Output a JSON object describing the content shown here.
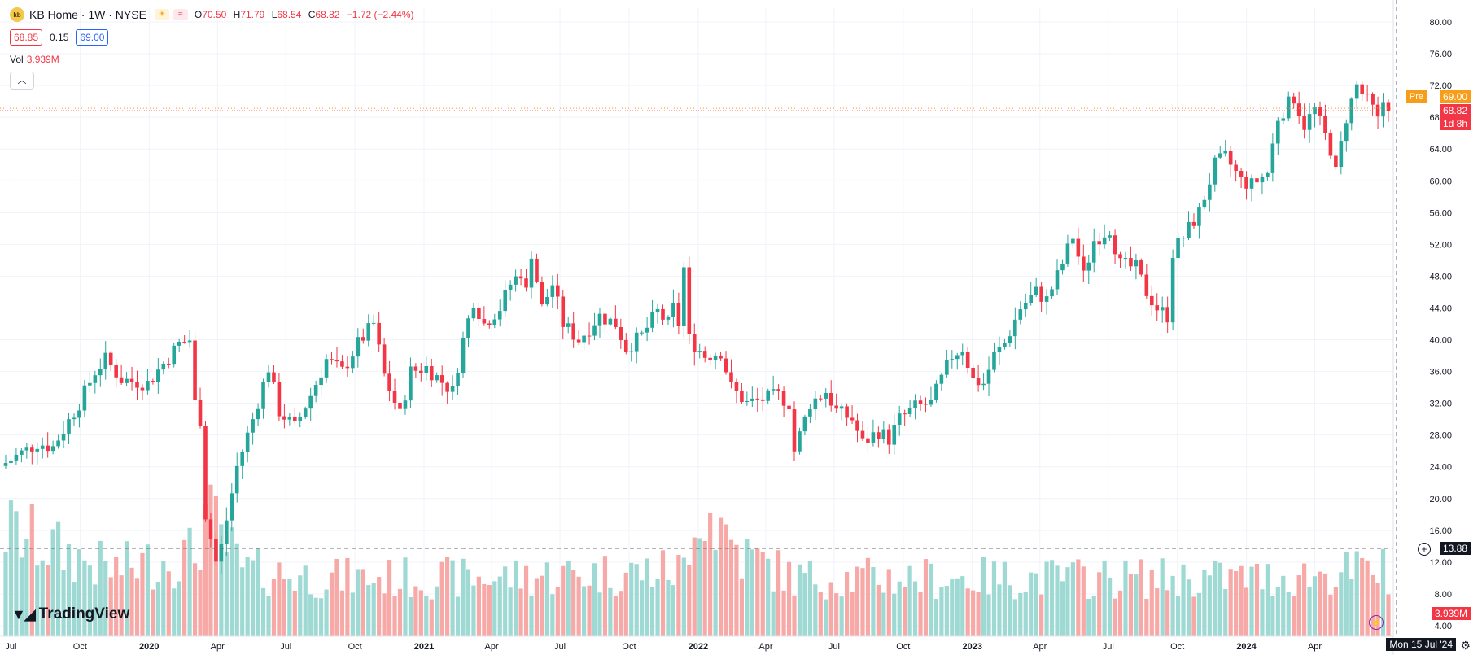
{
  "header": {
    "logo": "kb",
    "symbol": "KB Home · 1W · NYSE",
    "open_label": "O",
    "open": "70.50",
    "high_label": "H",
    "high": "71.79",
    "low_label": "L",
    "low": "68.54",
    "close_label": "C",
    "close": "68.82",
    "change": "−1.72 (−2.44%)",
    "bid": "68.85",
    "spread": "0.15",
    "ask": "69.00",
    "vol_label": "Vol",
    "vol_value": "3.939M",
    "collapse_icon": "chevron-up-icon"
  },
  "branding": {
    "name": "TradingView"
  },
  "price_scale": {
    "pre_tag": "Pre",
    "pre_price": "69.00",
    "last_price": "68.82",
    "countdown": "1d 8h",
    "crosshair_value": "13.88",
    "volume_tag": "3.939M",
    "date_tag": "Mon 15 Jul '24"
  },
  "colors": {
    "up": "#26a69a",
    "down": "#f23645",
    "up_vol": "#9fd9d3",
    "down_vol": "#f7a9a7",
    "pre": "#f89d1a",
    "grid": "#f0f3fa"
  },
  "chart_data": {
    "type": "candlestick",
    "y_ticks": [
      "80.00",
      "76.00",
      "72.00",
      "68.00",
      "64.00",
      "60.00",
      "56.00",
      "52.00",
      "48.00",
      "44.00",
      "40.00",
      "36.00",
      "32.00",
      "28.00",
      "24.00",
      "20.00",
      "16.00",
      "12.00",
      "8.00",
      "4.00"
    ],
    "ylim": [
      4,
      80
    ],
    "x_ticks": [
      {
        "label": "Jul",
        "date": "2019-07-01"
      },
      {
        "label": "Oct",
        "date": "2019-10-01"
      },
      {
        "label": "2020",
        "date": "2020-01-01"
      },
      {
        "label": "Apr",
        "date": "2020-04-01"
      },
      {
        "label": "Jul",
        "date": "2020-07-01"
      },
      {
        "label": "Oct",
        "date": "2020-10-01"
      },
      {
        "label": "2021",
        "date": "2021-01-01"
      },
      {
        "label": "Apr",
        "date": "2021-04-01"
      },
      {
        "label": "Jul",
        "date": "2021-07-01"
      },
      {
        "label": "Oct",
        "date": "2021-10-01"
      },
      {
        "label": "2022",
        "date": "2022-01-01"
      },
      {
        "label": "Apr",
        "date": "2022-04-01"
      },
      {
        "label": "Jul",
        "date": "2022-07-01"
      },
      {
        "label": "Oct",
        "date": "2022-10-01"
      },
      {
        "label": "2023",
        "date": "2023-01-01"
      },
      {
        "label": "Apr",
        "date": "2023-04-01"
      },
      {
        "label": "Jul",
        "date": "2023-07-01"
      },
      {
        "label": "Oct",
        "date": "2023-10-01"
      },
      {
        "label": "2024",
        "date": "2024-01-01"
      },
      {
        "label": "Apr",
        "date": "2024-04-01"
      }
    ],
    "start_date": "2019-06-24",
    "close_path": [
      [
        0,
        24.5
      ],
      [
        6,
        27.0
      ],
      [
        9,
        26.5
      ],
      [
        14,
        32.0
      ],
      [
        17,
        36.0
      ],
      [
        19,
        37.5
      ],
      [
        22,
        35.0
      ],
      [
        27,
        34.5
      ],
      [
        30,
        37.0
      ],
      [
        33,
        39.5
      ],
      [
        35,
        40.0
      ],
      [
        36,
        32.0
      ],
      [
        37,
        30.0
      ],
      [
        38,
        18.0
      ],
      [
        40,
        12.0
      ],
      [
        41,
        14.0
      ],
      [
        44,
        24.0
      ],
      [
        47,
        30.0
      ],
      [
        50,
        36.5
      ],
      [
        52,
        31.0
      ],
      [
        55,
        29.0
      ],
      [
        58,
        33.0
      ],
      [
        61,
        37.5
      ],
      [
        64,
        36.0
      ],
      [
        67,
        39.5
      ],
      [
        70,
        42.0
      ],
      [
        72,
        35.5
      ],
      [
        75,
        30.5
      ],
      [
        77,
        36.0
      ],
      [
        80,
        36.5
      ],
      [
        85,
        33.5
      ],
      [
        87,
        40.0
      ],
      [
        89,
        45.0
      ],
      [
        91,
        42.0
      ],
      [
        94,
        44.0
      ],
      [
        96,
        47.0
      ],
      [
        98,
        48.5
      ],
      [
        99,
        46.0
      ],
      [
        100,
        51.0
      ],
      [
        102,
        44.0
      ],
      [
        104,
        47.0
      ],
      [
        106,
        42.0
      ],
      [
        109,
        40.0
      ],
      [
        113,
        43.0
      ],
      [
        116,
        42.0
      ],
      [
        118,
        39.0
      ],
      [
        121,
        40.5
      ],
      [
        124,
        43.5
      ],
      [
        126,
        42.0
      ],
      [
        127,
        44.0
      ],
      [
        128,
        42.0
      ],
      [
        129,
        49.0
      ],
      [
        130,
        40.0
      ],
      [
        133,
        38.0
      ],
      [
        136,
        38.5
      ],
      [
        138,
        34.0
      ],
      [
        141,
        32.0
      ],
      [
        144,
        32.5
      ],
      [
        147,
        33.0
      ],
      [
        149,
        32.0
      ],
      [
        150,
        26.0
      ],
      [
        153,
        32.0
      ],
      [
        156,
        33.5
      ],
      [
        158,
        31.0
      ],
      [
        161,
        30.0
      ],
      [
        163,
        27.0
      ],
      [
        166,
        28.5
      ],
      [
        168,
        27.5
      ],
      [
        170,
        30.0
      ],
      [
        173,
        31.5
      ],
      [
        176,
        32.0
      ],
      [
        180,
        38.0
      ],
      [
        182,
        39.0
      ],
      [
        184,
        35.0
      ],
      [
        186,
        34.5
      ],
      [
        188,
        38.0
      ],
      [
        190,
        39.5
      ],
      [
        193,
        44.0
      ],
      [
        196,
        46.0
      ],
      [
        198,
        45.0
      ],
      [
        200,
        48.0
      ],
      [
        203,
        53.0
      ],
      [
        205,
        48.0
      ],
      [
        207,
        52.5
      ],
      [
        210,
        54.0
      ],
      [
        212,
        49.5
      ],
      [
        215,
        49.0
      ],
      [
        217,
        46.0
      ],
      [
        219,
        44.0
      ],
      [
        221,
        43.0
      ],
      [
        222,
        51.0
      ],
      [
        224,
        53.0
      ],
      [
        227,
        56.0
      ],
      [
        230,
        62.0
      ],
      [
        232,
        63.0
      ],
      [
        235,
        60.0
      ],
      [
        237,
        59.5
      ],
      [
        240,
        61.0
      ],
      [
        242,
        68.0
      ],
      [
        245,
        70.5
      ],
      [
        247,
        67.0
      ],
      [
        249,
        69.0
      ],
      [
        252,
        64.0
      ],
      [
        253,
        61.0
      ],
      [
        255,
        68.0
      ],
      [
        257,
        72.0
      ],
      [
        258,
        71.0
      ],
      [
        260,
        69.0
      ],
      [
        261,
        67.5
      ],
      [
        262,
        70.0
      ],
      [
        263,
        68.82
      ]
    ],
    "volume_path": [
      [
        0,
        12
      ],
      [
        20,
        7
      ],
      [
        36,
        9
      ],
      [
        38,
        14
      ],
      [
        41,
        11
      ],
      [
        45,
        7
      ],
      [
        60,
        6
      ],
      [
        90,
        6
      ],
      [
        130,
        7
      ],
      [
        131,
        17
      ],
      [
        140,
        9
      ],
      [
        150,
        6
      ],
      [
        240,
        6
      ],
      [
        262,
        7
      ],
      [
        263,
        3.939
      ]
    ]
  }
}
